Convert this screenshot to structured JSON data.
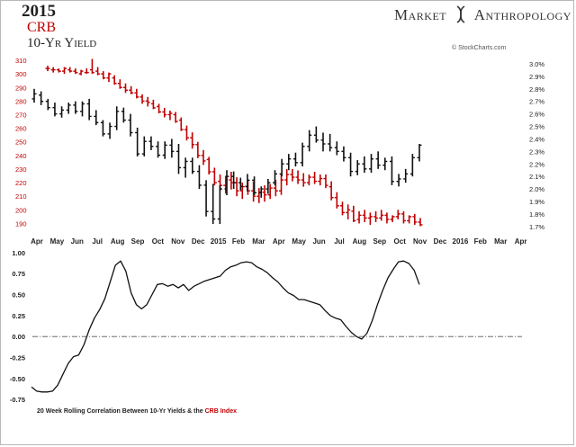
{
  "header": {
    "year": "2015",
    "crb_label": "CRB",
    "yield_label": "10-Yr Yield",
    "brand_left": "Market",
    "brand_right": "Anthropology",
    "credit": "© StockCharts.com"
  },
  "colors": {
    "crb": "#c00000",
    "yield": "#111111",
    "corr": "#111111",
    "zero_line": "#555555"
  },
  "chart_data": [
    {
      "type": "bar",
      "subtype": "ohlc",
      "x_tick_labels": [
        "Apr",
        "May",
        "Jun",
        "Jul",
        "Aug",
        "Sep",
        "Oct",
        "Nov",
        "Dec",
        "2015",
        "Feb",
        "Mar",
        "Apr",
        "May",
        "Jun",
        "Jul",
        "Aug",
        "Sep",
        "Oct",
        "Nov",
        "Dec",
        "2016",
        "Feb",
        "Mar",
        "Apr"
      ],
      "left_axis": {
        "labels": [
          "310",
          "300",
          "290",
          "280",
          "270",
          "260",
          "250",
          "240",
          "230",
          "220",
          "210",
          "200",
          "190"
        ],
        "ylim": [
          185,
          312
        ]
      },
      "right_axis": {
        "labels": [
          "3.0%",
          "2.9%",
          "2.8%",
          "2.7%",
          "2.6%",
          "2.5%",
          "2.4%",
          "2.3%",
          "2.2%",
          "2.1%",
          "2.0%",
          "1.9%",
          "1.8%",
          "1.7%"
        ],
        "ylim": [
          1.67,
          3.05
        ]
      },
      "series": [
        {
          "name": "CRB",
          "axis": "left",
          "bars": [
            [
              304,
              306,
              302,
              304
            ],
            [
              303,
              305,
              301,
              303
            ],
            [
              303,
              304,
              301,
              302
            ],
            [
              302,
              305,
              300,
              304
            ],
            [
              303,
              305,
              301,
              302
            ],
            [
              302,
              304,
              300,
              301
            ],
            [
              300,
              303,
              299,
              302
            ],
            [
              301,
              304,
              300,
              301
            ],
            [
              303,
              311,
              300,
              301
            ],
            [
              302,
              305,
              299,
              300
            ],
            [
              300,
              302,
              296,
              297
            ],
            [
              297,
              301,
              294,
              300
            ],
            [
              297,
              299,
              292,
              293
            ],
            [
              293,
              296,
              289,
              290
            ],
            [
              290,
              293,
              286,
              288
            ],
            [
              288,
              291,
              285,
              286
            ],
            [
              286,
              289,
              282,
              283
            ],
            [
              283,
              285,
              278,
              280
            ],
            [
              280,
              283,
              276,
              279
            ],
            [
              278,
              281,
              274,
              275
            ],
            [
              276,
              278,
              271,
              272
            ],
            [
              272,
              275,
              268,
              270
            ],
            [
              270,
              273,
              266,
              271
            ],
            [
              270,
              272,
              264,
              265
            ],
            [
              266,
              268,
              258,
              259
            ],
            [
              259,
              262,
              251,
              253
            ],
            [
              253,
              257,
              245,
              248
            ],
            [
              248,
              250,
              238,
              240
            ],
            [
              240,
              244,
              233,
              236
            ],
            [
              237,
              239,
              226,
              228
            ],
            [
              228,
              231,
              218,
              220
            ],
            [
              221,
              226,
              214,
              218
            ],
            [
              218,
              225,
              212,
              222
            ],
            [
              222,
              228,
              215,
              220
            ],
            [
              220,
              224,
              210,
              214
            ],
            [
              214,
              220,
              208,
              217
            ],
            [
              217,
              222,
              211,
              214
            ],
            [
              214,
              221,
              206,
              210
            ],
            [
              210,
              216,
              205,
              213
            ],
            [
              213,
              218,
              206,
              211
            ],
            [
              211,
              219,
              208,
              216
            ],
            [
              216,
              222,
              210,
              214
            ],
            [
              214,
              226,
              211,
              222
            ],
            [
              222,
              230,
              218,
              226
            ],
            [
              226,
              230,
              221,
              224
            ],
            [
              224,
              229,
              219,
              222
            ],
            [
              222,
              227,
              217,
              220
            ],
            [
              220,
              226,
              218,
              224
            ],
            [
              224,
              228,
              219,
              221
            ],
            [
              221,
              226,
              218,
              223
            ],
            [
              223,
              226,
              216,
              218
            ],
            [
              217,
              221,
              207,
              209
            ],
            [
              209,
              213,
              201,
              203
            ],
            [
              203,
              206,
              196,
              198
            ],
            [
              198,
              204,
              193,
              200
            ],
            [
              199,
              203,
              191,
              192
            ],
            [
              193,
              199,
              190,
              196
            ],
            [
              196,
              200,
              191,
              194
            ],
            [
              194,
              198,
              189,
              195
            ],
            [
              195,
              199,
              191,
              194
            ],
            [
              194,
              200,
              192,
              196
            ],
            [
              196,
              198,
              190,
              193
            ],
            [
              193,
              196,
              191,
              195
            ],
            [
              195,
              200,
              193,
              197
            ],
            [
              197,
              199,
              190,
              192
            ],
            [
              192,
              196,
              190,
              195
            ],
            [
              195,
              197,
              189,
              191
            ],
            [
              191,
              194,
              188,
              189
            ]
          ]
        },
        {
          "name": "10-Yr Yield",
          "axis": "right",
          "bars": [
            [
              2.72,
              2.8,
              2.69,
              2.76
            ],
            [
              2.75,
              2.78,
              2.67,
              2.7
            ],
            [
              2.7,
              2.72,
              2.63,
              2.65
            ],
            [
              2.65,
              2.69,
              2.58,
              2.6
            ],
            [
              2.6,
              2.66,
              2.57,
              2.63
            ],
            [
              2.63,
              2.69,
              2.6,
              2.67
            ],
            [
              2.67,
              2.7,
              2.6,
              2.62
            ],
            [
              2.62,
              2.7,
              2.58,
              2.68
            ],
            [
              2.68,
              2.72,
              2.55,
              2.58
            ],
            [
              2.58,
              2.63,
              2.51,
              2.53
            ],
            [
              2.53,
              2.55,
              2.42,
              2.44
            ],
            [
              2.44,
              2.53,
              2.4,
              2.5
            ],
            [
              2.5,
              2.66,
              2.47,
              2.62
            ],
            [
              2.62,
              2.65,
              2.53,
              2.55
            ],
            [
              2.55,
              2.6,
              2.42,
              2.45
            ],
            [
              2.45,
              2.49,
              2.26,
              2.28
            ],
            [
              2.28,
              2.42,
              2.26,
              2.38
            ],
            [
              2.38,
              2.42,
              2.31,
              2.34
            ],
            [
              2.34,
              2.38,
              2.25,
              2.27
            ],
            [
              2.27,
              2.38,
              2.24,
              2.35
            ],
            [
              2.35,
              2.4,
              2.25,
              2.3
            ],
            [
              2.3,
              2.36,
              2.12,
              2.17
            ],
            [
              2.17,
              2.25,
              2.09,
              2.22
            ],
            [
              2.22,
              2.25,
              2.12,
              2.14
            ],
            [
              2.14,
              2.19,
              2.0,
              2.03
            ],
            [
              2.03,
              2.07,
              1.78,
              1.82
            ],
            [
              1.82,
              2.04,
              1.72,
              1.76
            ],
            [
              1.76,
              2.03,
              1.72,
              2.0
            ],
            [
              2.0,
              2.15,
              1.95,
              2.1
            ],
            [
              2.1,
              2.14,
              2.0,
              2.05
            ],
            [
              2.05,
              2.09,
              1.99,
              2.02
            ],
            [
              2.02,
              2.12,
              1.98,
              2.07
            ],
            [
              2.07,
              2.1,
              1.95,
              1.97
            ],
            [
              1.97,
              2.02,
              1.93,
              2.0
            ],
            [
              2.0,
              2.08,
              1.96,
              2.05
            ],
            [
              2.05,
              2.15,
              2.03,
              2.12
            ],
            [
              2.12,
              2.24,
              2.1,
              2.2
            ],
            [
              2.2,
              2.28,
              2.15,
              2.24
            ],
            [
              2.24,
              2.29,
              2.18,
              2.21
            ],
            [
              2.21,
              2.37,
              2.18,
              2.34
            ],
            [
              2.34,
              2.47,
              2.3,
              2.43
            ],
            [
              2.43,
              2.5,
              2.37,
              2.39
            ],
            [
              2.39,
              2.45,
              2.3,
              2.36
            ],
            [
              2.36,
              2.44,
              2.3,
              2.33
            ],
            [
              2.33,
              2.38,
              2.27,
              2.3
            ],
            [
              2.3,
              2.34,
              2.22,
              2.25
            ],
            [
              2.25,
              2.29,
              2.1,
              2.14
            ],
            [
              2.14,
              2.23,
              2.11,
              2.2
            ],
            [
              2.2,
              2.26,
              2.13,
              2.16
            ],
            [
              2.16,
              2.28,
              2.13,
              2.24
            ],
            [
              2.24,
              2.3,
              2.16,
              2.19
            ],
            [
              2.19,
              2.25,
              2.15,
              2.22
            ],
            [
              2.22,
              2.26,
              2.03,
              2.06
            ],
            [
              2.06,
              2.12,
              2.02,
              2.08
            ],
            [
              2.08,
              2.16,
              2.05,
              2.12
            ],
            [
              2.12,
              2.28,
              2.1,
              2.25
            ],
            [
              2.25,
              2.36,
              2.22,
              2.35
            ]
          ]
        }
      ]
    },
    {
      "type": "line",
      "yticks": [
        "1.00",
        "0.75",
        "0.50",
        "0.25",
        "0.00",
        "-0.25",
        "-0.50",
        "-0.75"
      ],
      "ylim": [
        -0.78,
        1.02
      ],
      "values": [
        -0.6,
        -0.65,
        -0.66,
        -0.66,
        -0.65,
        -0.58,
        -0.45,
        -0.32,
        -0.24,
        -0.22,
        -0.1,
        0.08,
        0.22,
        0.32,
        0.45,
        0.65,
        0.85,
        0.9,
        0.78,
        0.52,
        0.38,
        0.33,
        0.38,
        0.5,
        0.62,
        0.63,
        0.6,
        0.62,
        0.58,
        0.62,
        0.55,
        0.6,
        0.63,
        0.66,
        0.68,
        0.7,
        0.72,
        0.79,
        0.83,
        0.85,
        0.88,
        0.89,
        0.88,
        0.83,
        0.8,
        0.76,
        0.7,
        0.65,
        0.58,
        0.52,
        0.49,
        0.44,
        0.44,
        0.42,
        0.4,
        0.38,
        0.31,
        0.25,
        0.22,
        0.2,
        0.12,
        0.05,
        0.0,
        -0.03,
        0.04,
        0.19,
        0.38,
        0.55,
        0.7,
        0.8,
        0.89,
        0.9,
        0.87,
        0.79,
        0.62
      ],
      "caption_prefix": "20 Week Rolling Correlation Between 10-Yr Yields & the ",
      "caption_highlight": "CRB Index"
    }
  ]
}
